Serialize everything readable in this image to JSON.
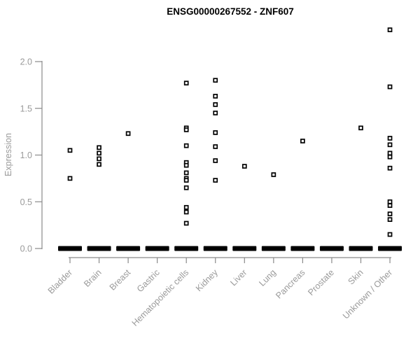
{
  "header": {
    "title": "ENSG00000267552 - ZNF607"
  },
  "colors": {
    "background": "#ffffff",
    "title_text": "#000000",
    "axis_line": "#8a8a8a",
    "tick_label": "#9a9a9a",
    "point": "#000000",
    "point_fill": "#ffffff",
    "zero_bar": "#000000"
  },
  "chart_data": {
    "type": "scatter",
    "subtype": "strip-plot",
    "title": "ENSG00000267552 - ZNF607",
    "xlabel": "",
    "ylabel": "Expression",
    "ylim": [
      0.0,
      2.45
    ],
    "yticks": [
      "0.0",
      "0.5",
      "1.0",
      "1.5",
      "2.0"
    ],
    "ytick_values": [
      0.0,
      0.5,
      1.0,
      1.5,
      2.0
    ],
    "grid": false,
    "legend": "none",
    "marker": "open-square-black",
    "categories": [
      "Bladder",
      "Brain",
      "Breast",
      "Gastric",
      "Hematopoietic cells",
      "Kidney",
      "Liver",
      "Lung",
      "Pancreas",
      "Prostate",
      "Skin",
      "Unknown / Other"
    ],
    "series": [
      {
        "category": "Bladder",
        "values": [
          1.05,
          0.75
        ],
        "zero_cluster_bar": true
      },
      {
        "category": "Brain",
        "values": [
          1.08,
          1.02,
          0.96,
          0.9
        ],
        "zero_cluster_bar": true
      },
      {
        "category": "Breast",
        "values": [
          1.23
        ],
        "zero_cluster_bar": true
      },
      {
        "category": "Gastric",
        "values": [],
        "zero_cluster_bar": true
      },
      {
        "category": "Hematopoietic cells",
        "values": [
          1.77,
          1.29,
          1.27,
          1.1,
          0.92,
          0.89,
          0.81,
          0.75,
          0.73,
          0.65,
          0.44,
          0.39,
          0.27
        ],
        "zero_cluster_bar": true
      },
      {
        "category": "Kidney",
        "values": [
          1.8,
          1.63,
          1.54,
          1.45,
          1.24,
          1.09,
          0.94,
          0.73
        ],
        "zero_cluster_bar": true
      },
      {
        "category": "Liver",
        "values": [
          0.88
        ],
        "zero_cluster_bar": true
      },
      {
        "category": "Lung",
        "values": [
          0.79
        ],
        "zero_cluster_bar": true
      },
      {
        "category": "Pancreas",
        "values": [
          1.15
        ],
        "zero_cluster_bar": true
      },
      {
        "category": "Prostate",
        "values": [],
        "zero_cluster_bar": true
      },
      {
        "category": "Skin",
        "values": [
          1.29
        ],
        "zero_cluster_bar": true
      },
      {
        "category": "Unknown / Other",
        "values": [
          2.34,
          1.73,
          1.18,
          1.11,
          1.02,
          0.98,
          0.86,
          0.5,
          0.46,
          0.37,
          0.31,
          0.15
        ],
        "zero_cluster_bar": true
      }
    ],
    "zero_bar_note": "Every category shows a dense cluster of samples at expression 0, drawn as a thick black dash on the baseline"
  }
}
